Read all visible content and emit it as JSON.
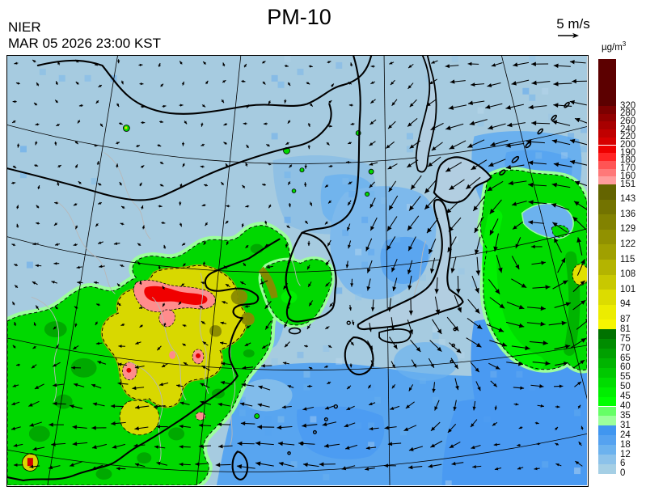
{
  "header": {
    "agency": "NIER",
    "datetime": "MAR 05 2026 23:00 KST",
    "title": "PM-10"
  },
  "wind_scale": {
    "label": "5 m/s"
  },
  "legend": {
    "unit_prefix": "µg/m",
    "unit_sup": "3",
    "ticks": [
      "320",
      "280",
      "260",
      "240",
      "220",
      "200",
      "190",
      "180",
      "170",
      "160",
      "151",
      "143",
      "136",
      "129",
      "122",
      "115",
      "108",
      "101",
      "94",
      "87",
      "81",
      "75",
      "70",
      "65",
      "60",
      "55",
      "50",
      "45",
      "40",
      "35",
      "31",
      "24",
      "18",
      "12",
      "6",
      "0"
    ],
    "cell_colors": [
      "#5c0000",
      "#7c0000",
      "#920000",
      "#a80000",
      "#c00000",
      "#d60000",
      "#ee0000",
      "#ff2424",
      "#ff5454",
      "#ff7878",
      "#ff9c9c",
      "#646400",
      "#737300",
      "#828200",
      "#919100",
      "#a0a000",
      "#b4b400",
      "#c8c800",
      "#dcdc00",
      "#ecec00",
      "#f6f600",
      "#007200",
      "#008c00",
      "#00a000",
      "#00b400",
      "#00c800",
      "#00dc00",
      "#00ee00",
      "#00ff00",
      "#66ff66",
      "#9cff9c",
      "#4096f0",
      "#55a2f0",
      "#6cb2ee",
      "#8cc2ea",
      "#a5cfe5"
    ]
  },
  "palette": {
    "ocean_base": "#a6cbe0",
    "ocean_mid": "#6cb2ee",
    "ocean_deep": "#4a9af2",
    "pm_green": "#00d800",
    "pm_green_fringe": "#9cff9c",
    "pm_yellow": "#d8d800",
    "pm_salmon": "#ff8c8c",
    "pm_red": "#f00000",
    "arrow_color": "#000000"
  }
}
